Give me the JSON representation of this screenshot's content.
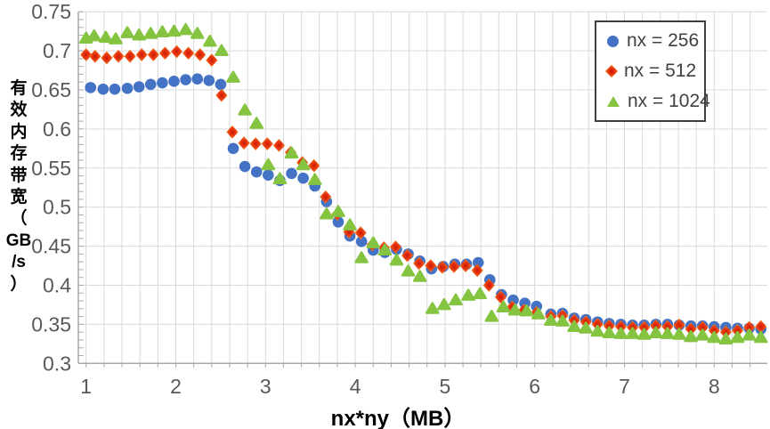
{
  "colors": {
    "grid": "#D9D9D9",
    "axis": "#A6A6A6",
    "tick_label": "#595959",
    "legend_border": "#3F3F3F",
    "legend_text": "#404040",
    "series_blue": "#4472C4",
    "series_red": "#E83A12",
    "series_green": "#84C441"
  },
  "chart_data": {
    "type": "scatter",
    "title": "",
    "xlabel": "nx*ny（MB）",
    "ylabel": "有效内存带宽（GB/s）",
    "ylabel_stacked": [
      "有",
      "效",
      "内",
      "存",
      "带",
      "宽",
      "（",
      "GB",
      "/s",
      "）"
    ],
    "xlim": [
      1,
      8.6
    ],
    "ylim": [
      0.3,
      0.75
    ],
    "x_ticks": [
      "1",
      "2",
      "3",
      "4",
      "5",
      "6",
      "7",
      "8"
    ],
    "y_ticks": [
      "0.3",
      "0.35",
      "0.4",
      "0.45",
      "0.5",
      "0.55",
      "0.6",
      "0.65",
      "0.7",
      "0.75"
    ],
    "x_minor_step": 0.2,
    "y_minor_step": 0.01,
    "grid": true,
    "legend_position": "top-right",
    "series": [
      {
        "name": "nx = 256",
        "marker": "circle",
        "color": "#4472C4",
        "points": [
          [
            1.05,
            0.653
          ],
          [
            1.19,
            0.651
          ],
          [
            1.32,
            0.651
          ],
          [
            1.46,
            0.652
          ],
          [
            1.59,
            0.654
          ],
          [
            1.72,
            0.657
          ],
          [
            1.85,
            0.659
          ],
          [
            1.98,
            0.661
          ],
          [
            2.11,
            0.663
          ],
          [
            2.24,
            0.664
          ],
          [
            2.37,
            0.662
          ],
          [
            2.5,
            0.657
          ],
          [
            2.64,
            0.575
          ],
          [
            2.77,
            0.552
          ],
          [
            2.9,
            0.545
          ],
          [
            3.03,
            0.541
          ],
          [
            3.16,
            0.534
          ],
          [
            3.29,
            0.543
          ],
          [
            3.42,
            0.537
          ],
          [
            3.55,
            0.527
          ],
          [
            3.68,
            0.507
          ],
          [
            3.81,
            0.481
          ],
          [
            3.94,
            0.463
          ],
          [
            4.07,
            0.456
          ],
          [
            4.2,
            0.445
          ],
          [
            4.33,
            0.442
          ],
          [
            4.46,
            0.446
          ],
          [
            4.59,
            0.44
          ],
          [
            4.72,
            0.431
          ],
          [
            4.85,
            0.421
          ],
          [
            4.98,
            0.424
          ],
          [
            5.11,
            0.427
          ],
          [
            5.24,
            0.427
          ],
          [
            5.37,
            0.429
          ],
          [
            5.5,
            0.407
          ],
          [
            5.63,
            0.388
          ],
          [
            5.76,
            0.381
          ],
          [
            5.89,
            0.377
          ],
          [
            6.02,
            0.373
          ],
          [
            6.18,
            0.363
          ],
          [
            6.31,
            0.364
          ],
          [
            6.44,
            0.358
          ],
          [
            6.57,
            0.356
          ],
          [
            6.7,
            0.353
          ],
          [
            6.83,
            0.351
          ],
          [
            6.96,
            0.35
          ],
          [
            7.09,
            0.349
          ],
          [
            7.22,
            0.349
          ],
          [
            7.35,
            0.35
          ],
          [
            7.48,
            0.35
          ],
          [
            7.61,
            0.349
          ],
          [
            7.74,
            0.348
          ],
          [
            7.87,
            0.348
          ],
          [
            8.0,
            0.347
          ],
          [
            8.13,
            0.346
          ],
          [
            8.26,
            0.345
          ],
          [
            8.39,
            0.345
          ],
          [
            8.52,
            0.344
          ]
        ]
      },
      {
        "name": "nx = 512",
        "marker": "diamond",
        "color": "#E83A12",
        "points": [
          [
            1.0,
            0.695
          ],
          [
            1.1,
            0.693
          ],
          [
            1.23,
            0.691
          ],
          [
            1.36,
            0.693
          ],
          [
            1.49,
            0.693
          ],
          [
            1.62,
            0.695
          ],
          [
            1.75,
            0.695
          ],
          [
            1.88,
            0.697
          ],
          [
            2.01,
            0.699
          ],
          [
            2.14,
            0.697
          ],
          [
            2.27,
            0.695
          ],
          [
            2.4,
            0.688
          ],
          [
            2.51,
            0.643
          ],
          [
            2.63,
            0.596
          ],
          [
            2.76,
            0.582
          ],
          [
            2.89,
            0.581
          ],
          [
            3.02,
            0.581
          ],
          [
            3.15,
            0.579
          ],
          [
            3.28,
            0.57
          ],
          [
            3.41,
            0.557
          ],
          [
            3.54,
            0.553
          ],
          [
            3.67,
            0.513
          ],
          [
            3.8,
            0.491
          ],
          [
            3.93,
            0.468
          ],
          [
            4.06,
            0.467
          ],
          [
            4.19,
            0.452
          ],
          [
            4.32,
            0.448
          ],
          [
            4.45,
            0.449
          ],
          [
            4.58,
            0.438
          ],
          [
            4.71,
            0.428
          ],
          [
            4.84,
            0.425
          ],
          [
            4.97,
            0.423
          ],
          [
            5.1,
            0.424
          ],
          [
            5.23,
            0.425
          ],
          [
            5.36,
            0.419
          ],
          [
            5.49,
            0.4
          ],
          [
            5.62,
            0.385
          ],
          [
            5.75,
            0.372
          ],
          [
            5.88,
            0.368
          ],
          [
            6.02,
            0.365
          ],
          [
            6.18,
            0.36
          ],
          [
            6.31,
            0.361
          ],
          [
            6.44,
            0.355
          ],
          [
            6.57,
            0.353
          ],
          [
            6.7,
            0.35
          ],
          [
            6.83,
            0.348
          ],
          [
            6.96,
            0.347
          ],
          [
            7.09,
            0.346
          ],
          [
            7.22,
            0.346
          ],
          [
            7.35,
            0.348
          ],
          [
            7.48,
            0.347
          ],
          [
            7.61,
            0.349
          ],
          [
            7.74,
            0.344
          ],
          [
            7.87,
            0.346
          ],
          [
            8.0,
            0.342
          ],
          [
            8.13,
            0.34
          ],
          [
            8.26,
            0.342
          ],
          [
            8.39,
            0.346
          ],
          [
            8.52,
            0.347
          ]
        ]
      },
      {
        "name": "nx = 1024",
        "marker": "triangle",
        "color": "#84C441",
        "points": [
          [
            1.0,
            0.716
          ],
          [
            1.09,
            0.719
          ],
          [
            1.22,
            0.717
          ],
          [
            1.33,
            0.715
          ],
          [
            1.46,
            0.723
          ],
          [
            1.59,
            0.72
          ],
          [
            1.72,
            0.722
          ],
          [
            1.85,
            0.724
          ],
          [
            1.98,
            0.725
          ],
          [
            2.11,
            0.727
          ],
          [
            2.24,
            0.722
          ],
          [
            2.38,
            0.712
          ],
          [
            2.51,
            0.7
          ],
          [
            2.64,
            0.666
          ],
          [
            2.77,
            0.624
          ],
          [
            2.9,
            0.607
          ],
          [
            3.03,
            0.554
          ],
          [
            3.16,
            0.536
          ],
          [
            3.29,
            0.569
          ],
          [
            3.42,
            0.554
          ],
          [
            3.55,
            0.535
          ],
          [
            3.68,
            0.491
          ],
          [
            3.81,
            0.494
          ],
          [
            3.94,
            0.477
          ],
          [
            4.07,
            0.435
          ],
          [
            4.2,
            0.454
          ],
          [
            4.33,
            0.445
          ],
          [
            4.46,
            0.432
          ],
          [
            4.59,
            0.418
          ],
          [
            4.72,
            0.411
          ],
          [
            4.86,
            0.37
          ],
          [
            4.99,
            0.375
          ],
          [
            5.12,
            0.381
          ],
          [
            5.26,
            0.387
          ],
          [
            5.39,
            0.389
          ],
          [
            5.52,
            0.36
          ],
          [
            5.65,
            0.372
          ],
          [
            5.78,
            0.368
          ],
          [
            5.91,
            0.367
          ],
          [
            6.04,
            0.363
          ],
          [
            6.18,
            0.355
          ],
          [
            6.31,
            0.354
          ],
          [
            6.44,
            0.347
          ],
          [
            6.57,
            0.345
          ],
          [
            6.7,
            0.341
          ],
          [
            6.83,
            0.339
          ],
          [
            6.96,
            0.338
          ],
          [
            7.09,
            0.338
          ],
          [
            7.22,
            0.337
          ],
          [
            7.35,
            0.339
          ],
          [
            7.48,
            0.338
          ],
          [
            7.61,
            0.337
          ],
          [
            7.74,
            0.334
          ],
          [
            7.87,
            0.336
          ],
          [
            8.0,
            0.333
          ],
          [
            8.13,
            0.331
          ],
          [
            8.26,
            0.333
          ],
          [
            8.39,
            0.336
          ],
          [
            8.52,
            0.333
          ]
        ]
      }
    ]
  }
}
